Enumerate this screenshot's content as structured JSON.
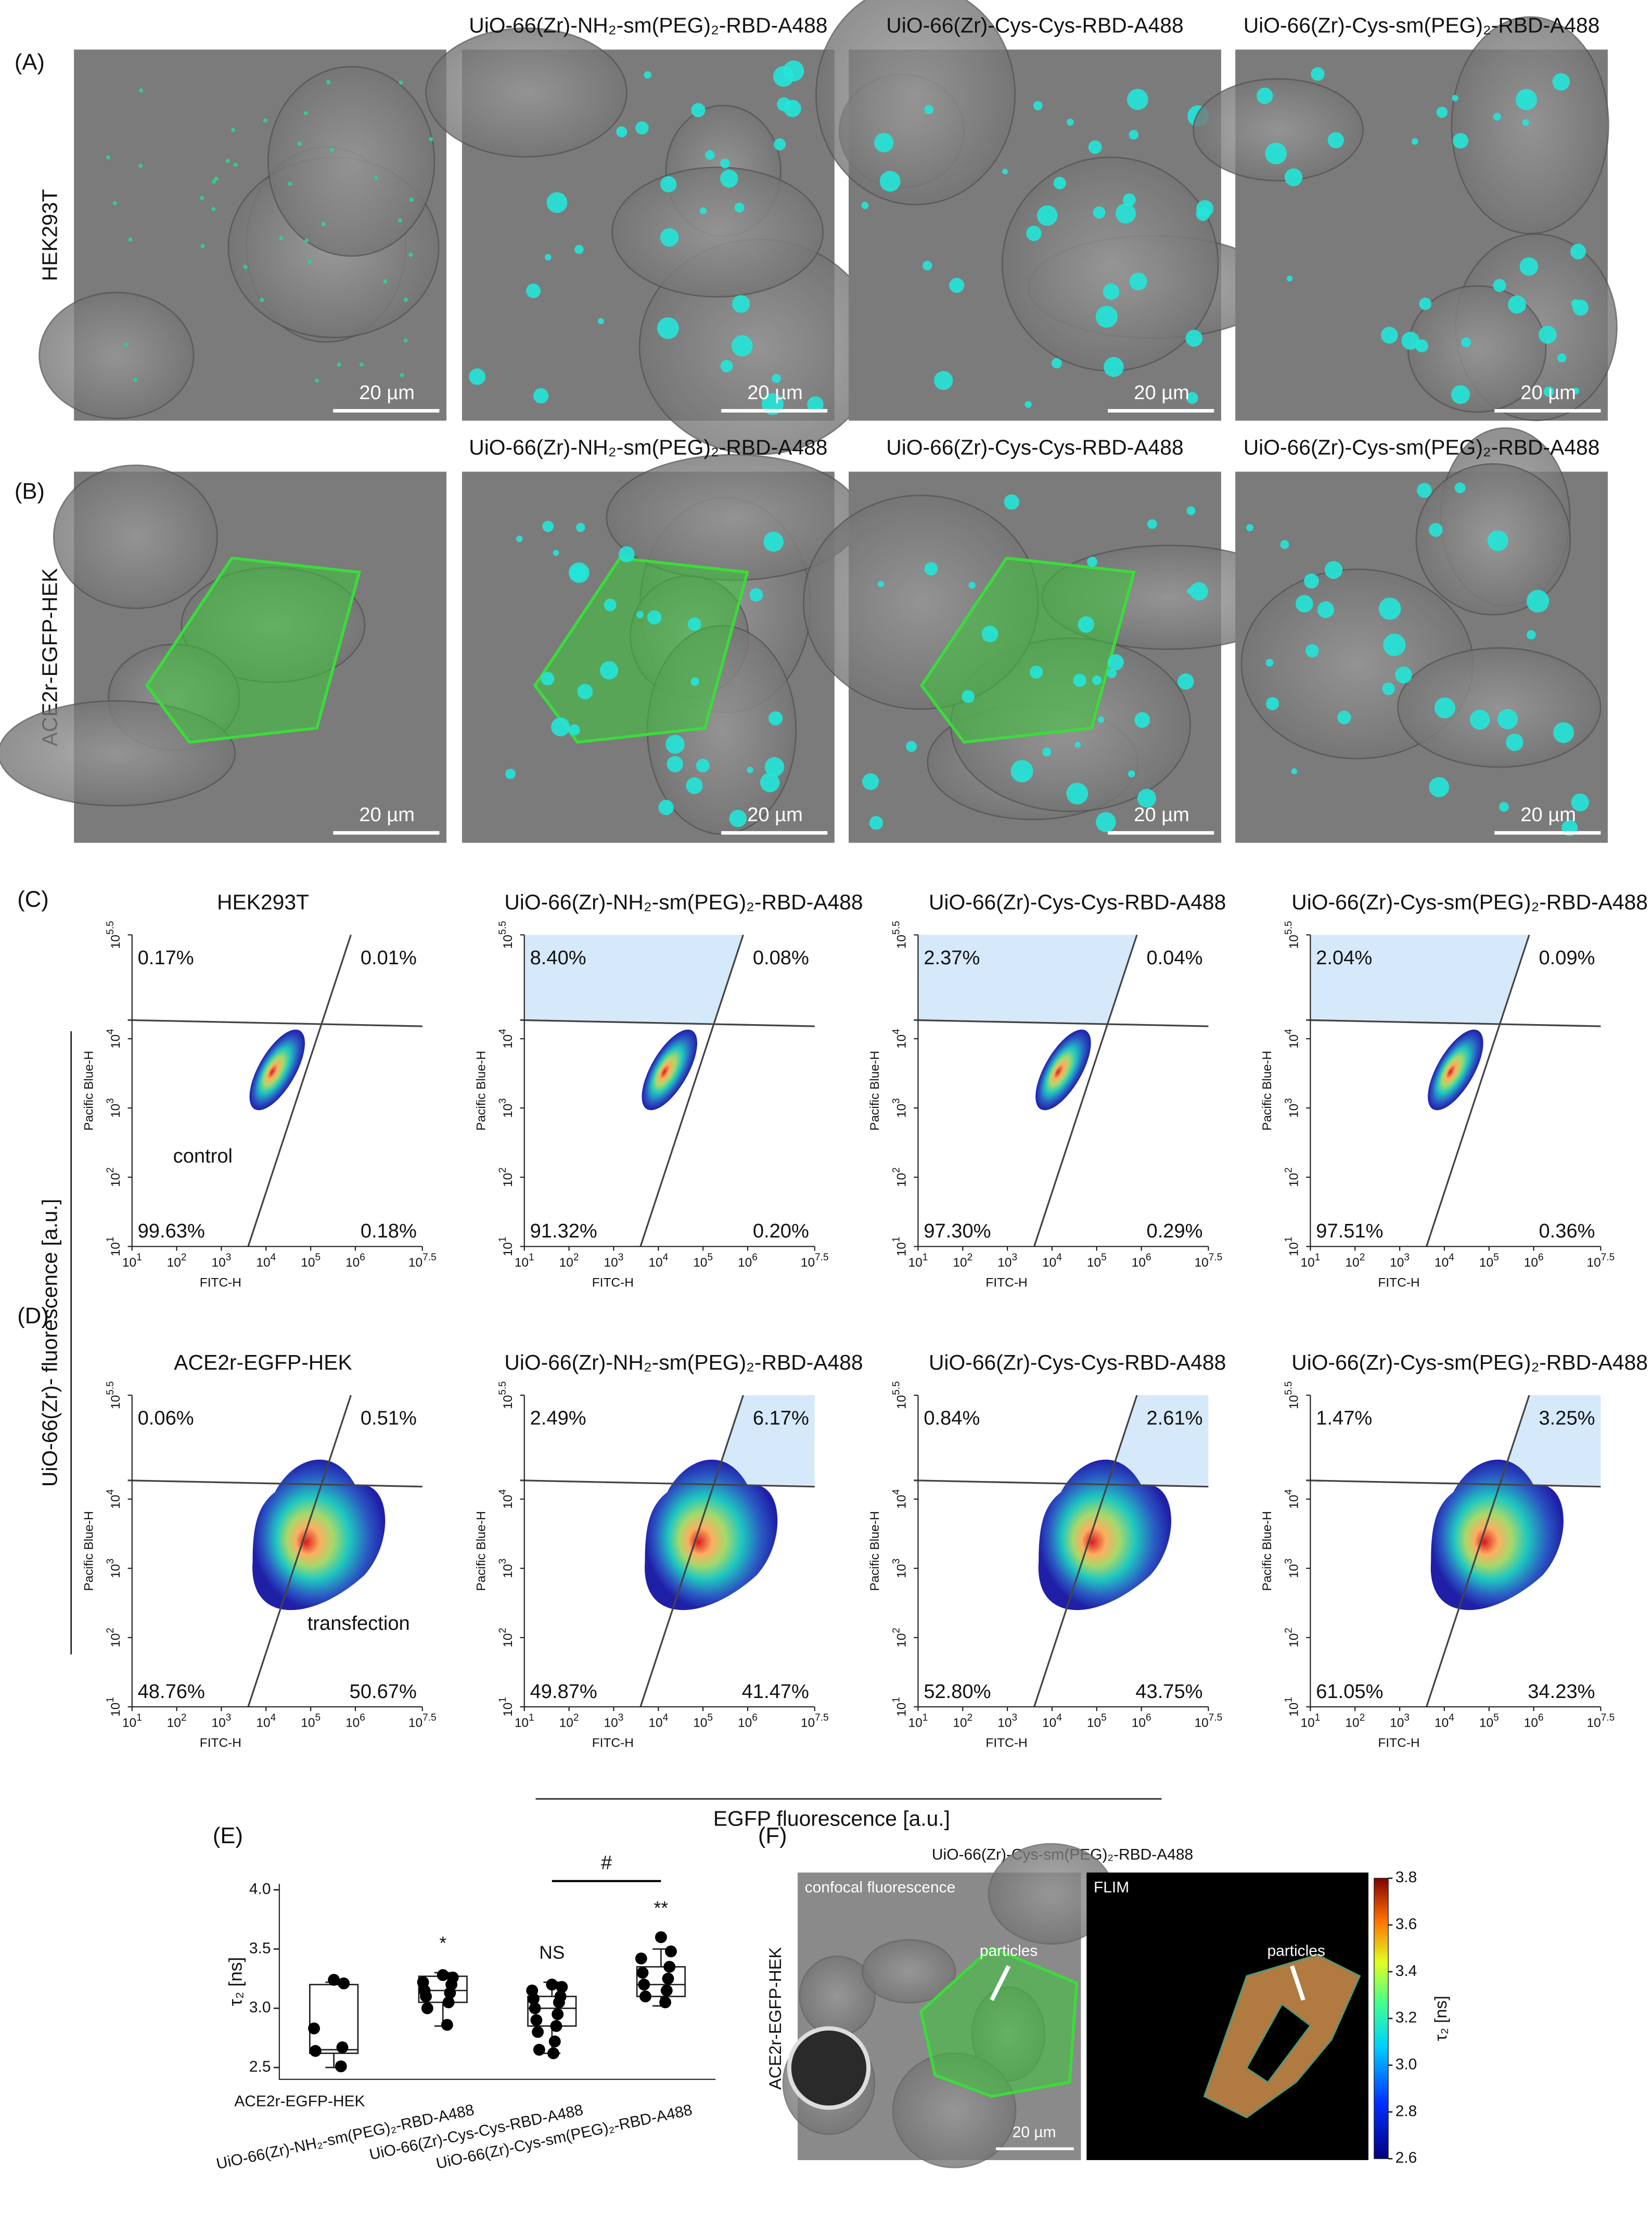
{
  "panel_labels": [
    "(A)",
    "(B)",
    "(C)",
    "(D)",
    "(E)",
    "(F)"
  ],
  "micrographs": {
    "column_titles": [
      "UiO-66(Zr)-NH₂-sm(PEG)₂-RBD-A488",
      "UiO-66(Zr)-Cys-Cys-RBD-A488",
      "UiO-66(Zr)-Cys-sm(PEG)₂-RBD-A488"
    ],
    "row_labels": [
      "HEK293T",
      "ACE2r-EGFP-HEK"
    ],
    "scale_bar": "20 µm"
  },
  "flow": {
    "x_label": "FITC-H",
    "y_label": "Pacific Blue-H",
    "tick_base": "10",
    "xticks": [
      1,
      2,
      3,
      4,
      5,
      6,
      7.5
    ],
    "yticks": [
      1,
      2,
      3,
      4,
      5.5
    ],
    "xlim": [
      1,
      7.5
    ],
    "ylim": [
      1,
      5.5
    ],
    "y_axis_title": "UiO-66(Zr)- fluorescence [a.u.]",
    "x_axis_title": "EGFP fluorescence [a.u.]",
    "rows": [
      {
        "plots": [
          {
            "title": "HEK293T",
            "quadrants": [
              "0.17%",
              "0.01%",
              "99.63%",
              "0.18%"
            ],
            "note": "control"
          },
          {
            "title": "UiO-66(Zr)-NH₂-sm(PEG)₂-RBD-A488",
            "quadrants": [
              "8.40%",
              "0.08%",
              "91.32%",
              "0.20%"
            ]
          },
          {
            "title": "UiO-66(Zr)-Cys-Cys-RBD-A488",
            "quadrants": [
              "2.37%",
              "0.04%",
              "97.30%",
              "0.29%"
            ]
          },
          {
            "title": "UiO-66(Zr)-Cys-sm(PEG)₂-RBD-A488",
            "quadrants": [
              "2.04%",
              "0.09%",
              "97.51%",
              "0.36%"
            ]
          }
        ]
      },
      {
        "plots": [
          {
            "title": "ACE2r-EGFP-HEK",
            "quadrants": [
              "0.06%",
              "0.51%",
              "48.76%",
              "50.67%"
            ],
            "note": "transfection"
          },
          {
            "title": "UiO-66(Zr)-NH₂-sm(PEG)₂-RBD-A488",
            "quadrants": [
              "2.49%",
              "6.17%",
              "49.87%",
              "41.47%"
            ]
          },
          {
            "title": "UiO-66(Zr)-Cys-Cys-RBD-A488",
            "quadrants": [
              "0.84%",
              "2.61%",
              "52.80%",
              "43.75%"
            ]
          },
          {
            "title": "UiO-66(Zr)-Cys-sm(PEG)₂-RBD-A488",
            "quadrants": [
              "1.47%",
              "3.25%",
              "61.05%",
              "34.23%"
            ]
          }
        ]
      }
    ]
  },
  "chart_data": {
    "type": "box",
    "y_label": "τ₂ [ns]",
    "ylim": [
      2.4,
      4.05
    ],
    "yticks": [
      2.5,
      {
        "value": 3,
        "label": "3.0"
      },
      3.5,
      {
        "value": 4,
        "label": "4.0"
      }
    ],
    "categories": [
      "ACE2r-EGFP-HEK",
      "UiO-66(Zr)-NH₂-sm(PEG)₂-RBD-A488",
      "UiO-66(Zr)-Cys-Cys-RBD-A488",
      "UiO-66(Zr)-Cys-sm(PEG)₂-RBD-A488"
    ],
    "boxes": [
      {
        "whisker_low": 2.5,
        "q1": 2.62,
        "median": 2.65,
        "q3": 3.2,
        "whisker_high": 3.22,
        "points": [
          3.24,
          3.21,
          2.83,
          2.67,
          2.64,
          2.51
        ]
      },
      {
        "whisker_low": 2.85,
        "q1": 3.05,
        "median": 3.15,
        "q3": 3.27,
        "whisker_high": 3.3,
        "points": [
          3.28,
          3.26,
          3.22,
          3.2,
          3.15,
          3.13,
          3.1,
          3.05,
          3.0,
          2.86
        ]
      },
      {
        "whisker_low": 2.62,
        "q1": 2.85,
        "median": 3.0,
        "q3": 3.1,
        "whisker_high": 3.22,
        "points": [
          3.2,
          3.18,
          3.15,
          3.1,
          3.08,
          3.05,
          3.0,
          2.95,
          2.9,
          2.85,
          2.8,
          2.72,
          2.65,
          2.62
        ]
      },
      {
        "whisker_low": 3.02,
        "q1": 3.1,
        "median": 3.2,
        "q3": 3.35,
        "whisker_high": 3.5,
        "points": [
          3.6,
          3.48,
          3.42,
          3.35,
          3.3,
          3.25,
          3.2,
          3.15,
          3.1,
          3.05
        ]
      }
    ],
    "significance": [
      null,
      "*",
      "NS",
      "**"
    ],
    "bracket_label": "#"
  },
  "flim": {
    "title": "UiO-66(Zr)-Cys-sm(PEG)₂-RBD-A488",
    "row_label": "ACE2r-EGFP-HEK",
    "left_label": "confocal fluorescence",
    "right_label": "FLIM",
    "arrow_label": "particles",
    "scale_bar": "20 µm",
    "colorbar_label": "τ₂ [ns]",
    "colorbar_lim": [
      2.6,
      3.8
    ],
    "colorbar_ticks": [
      2.6,
      2.8,
      {
        "value": 3,
        "label": "3.0"
      },
      3.2,
      3.4,
      3.6,
      3.8
    ]
  }
}
